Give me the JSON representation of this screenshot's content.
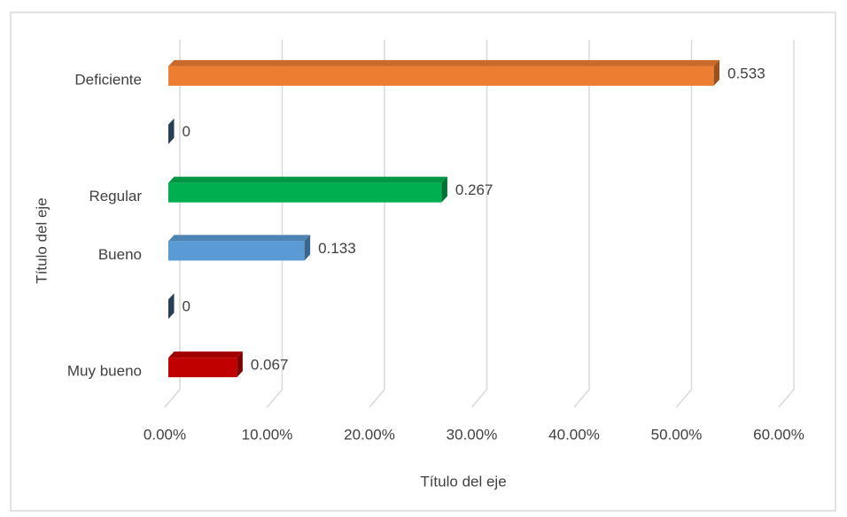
{
  "chart_data": {
    "type": "bar",
    "orientation": "horizontal",
    "categories": [
      "Muy bueno",
      null,
      "Bueno",
      "Regular",
      null,
      "Deficiente"
    ],
    "values": [
      0.067,
      0,
      0.133,
      0.267,
      0,
      0.533
    ],
    "colors": [
      "#c00000",
      "#3a6186",
      "#5b9bd5",
      "#00b050",
      "#3a6186",
      "#ed7d31"
    ],
    "xlim": [
      0,
      0.6
    ],
    "xticks": [
      {
        "value": 0,
        "label": "0.00%"
      },
      {
        "value": 0.1,
        "label": "10.00%"
      },
      {
        "value": 0.2,
        "label": "20.00%"
      },
      {
        "value": 0.3,
        "label": "30.00%"
      },
      {
        "value": 0.4,
        "label": "40.00%"
      },
      {
        "value": 0.5,
        "label": "50.00%"
      },
      {
        "value": 0.6,
        "label": "60.00%"
      }
    ],
    "x_label": "Título del eje",
    "y_label": "Título del eje",
    "grid": true
  }
}
